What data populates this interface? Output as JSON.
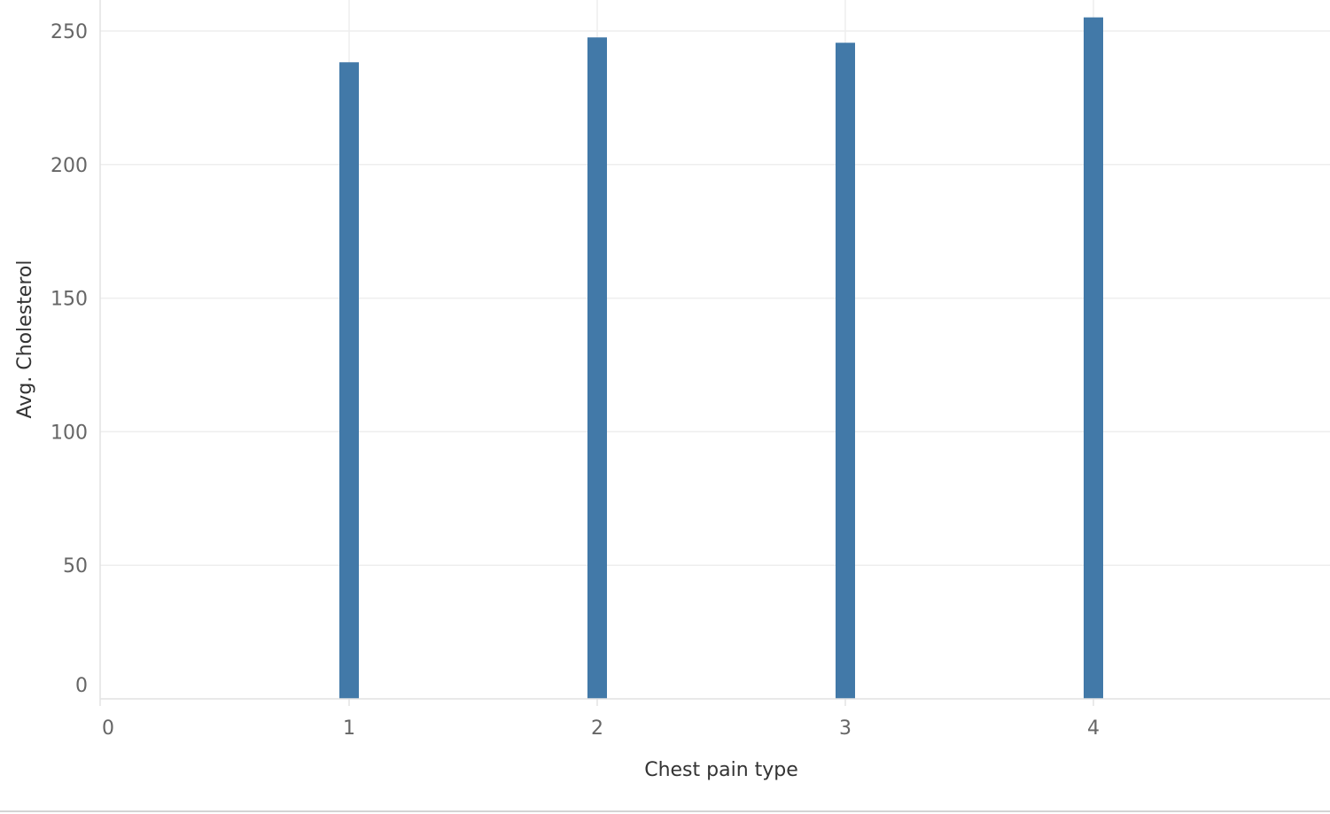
{
  "chart_data": {
    "type": "bar",
    "title": "",
    "xlabel": "Chest pain type",
    "ylabel": "Avg. Cholesterol",
    "x": [
      1,
      2,
      3,
      4
    ],
    "values": [
      238.3,
      247.6,
      245.6,
      255.1
    ],
    "xlim": [
      0,
      5
    ],
    "ylim": [
      0,
      250
    ],
    "x_ticks": [
      "0",
      "1",
      "2",
      "3",
      "4",
      "5"
    ],
    "y_ticks": [
      "0",
      "50",
      "100",
      "150",
      "200",
      "250"
    ],
    "grid": true,
    "bar_color": "#4279a8"
  }
}
